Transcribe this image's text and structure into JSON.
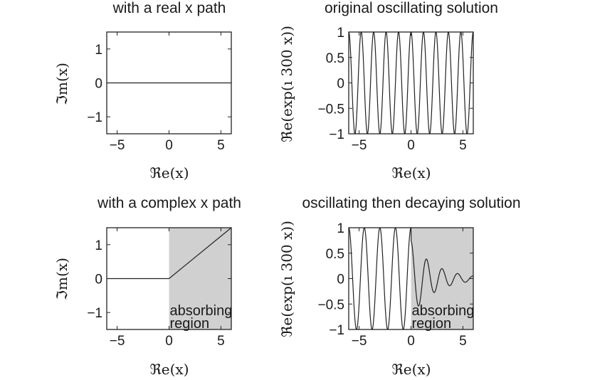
{
  "chart_data": [
    {
      "type": "line",
      "title": "with a real x path",
      "xlabel": "ℜe(x)",
      "ylabel": "ℑm(x)",
      "xlim": [
        -6,
        6
      ],
      "ylim": [
        -1.5,
        1.5
      ],
      "xticks": [
        -5,
        0,
        5
      ],
      "xtick_labels": [
        "−5",
        "0",
        "5"
      ],
      "yticks": [
        -1,
        0,
        1
      ],
      "ytick_labels": [
        "−1",
        "0",
        "1"
      ],
      "grid": false,
      "series": [
        {
          "x": [
            -6,
            6
          ],
          "y": [
            0,
            0
          ]
        }
      ]
    },
    {
      "type": "line",
      "title": "original oscillating solution",
      "xlabel": "ℜe(x)",
      "ylabel": "ℜe(exp(ı 300 x))",
      "xlim": [
        -6,
        6
      ],
      "ylim": [
        -1,
        1
      ],
      "xticks": [
        -5,
        0,
        5
      ],
      "xtick_labels": [
        "−5",
        "0",
        "5"
      ],
      "yticks": [
        -1,
        -0.5,
        0,
        0.5,
        1
      ],
      "ytick_labels": [
        "−1",
        "−0.5",
        "0",
        "0.5",
        "1"
      ],
      "grid": false,
      "series": [
        {
          "function": "cos(k x)",
          "periods_shown": 10,
          "amplitude": 1,
          "x_range": [
            -6,
            6
          ]
        }
      ]
    },
    {
      "type": "line",
      "title": "with a complex x path",
      "xlabel": "ℜe(x)",
      "ylabel": "ℑm(x)",
      "xlim": [
        -6,
        6
      ],
      "ylim": [
        -1.5,
        1.5
      ],
      "xticks": [
        -5,
        0,
        5
      ],
      "xtick_labels": [
        "−5",
        "0",
        "5"
      ],
      "yticks": [
        -1,
        0,
        1
      ],
      "ytick_labels": [
        "−1",
        "0",
        "1"
      ],
      "grid": false,
      "shaded_region": {
        "x": [
          0,
          6
        ],
        "label_line1": "absorbing",
        "label_line2": "region"
      },
      "series": [
        {
          "x": [
            -6,
            0,
            6
          ],
          "y": [
            0,
            0,
            1.5
          ]
        }
      ]
    },
    {
      "type": "line",
      "title": "oscillating then decaying solution",
      "xlabel": "ℜe(x)",
      "ylabel": "ℜe(exp(ı 300 x))",
      "xlim": [
        -6,
        6
      ],
      "ylim": [
        -1,
        1
      ],
      "xticks": [
        -5,
        0,
        5
      ],
      "xtick_labels": [
        "−5",
        "0",
        "5"
      ],
      "yticks": [
        -1,
        -0.5,
        0,
        0.5,
        1
      ],
      "ytick_labels": [
        "−1",
        "−0.5",
        "0",
        "0.5",
        "1"
      ],
      "grid": false,
      "shaded_region": {
        "x": [
          0,
          6
        ],
        "label_line1": "absorbing",
        "label_line2": "region"
      },
      "series": [
        {
          "function": "cos(k x), decaying for x > 0",
          "oscillations_before_region": 4,
          "amplitude": 1,
          "decay_start": 0,
          "x_range": [
            -6,
            6
          ]
        }
      ]
    }
  ]
}
